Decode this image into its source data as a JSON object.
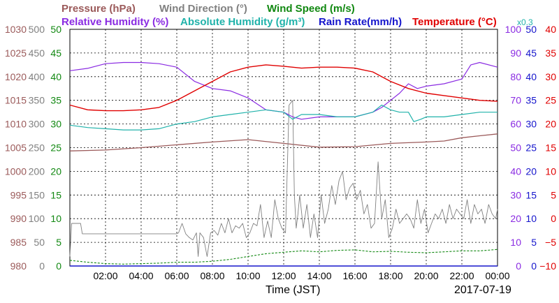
{
  "chart_data": {
    "type": "line",
    "date": "2017-07-19",
    "xlabel": "Time (JST)",
    "x_ticks": [
      "02:00",
      "04:00",
      "06:00",
      "08:00",
      "10:00",
      "12:00",
      "14:00",
      "16:00",
      "18:00",
      "20:00",
      "22:00",
      "00:00"
    ],
    "x_range": [
      0,
      24
    ],
    "grid": true,
    "legend": {
      "row1": [
        {
          "key": "pressure",
          "label": "Pressure (hPa)",
          "color": "#9b5a5a"
        },
        {
          "key": "wind_dir",
          "label": "Wind Direction (°)",
          "color": "#808080"
        },
        {
          "key": "wind_speed",
          "label": "Wind Speed (m/s)",
          "color": "#118811"
        }
      ],
      "row2": [
        {
          "key": "rh",
          "label": "Relative Humidity (%)",
          "color": "#8a2be2"
        },
        {
          "key": "ah",
          "label": "Absolute Humidity (g/m³)",
          "color": "#20b2aa"
        },
        {
          "key": "rain",
          "label": "Rain Rate(mm/h)",
          "color": "#1515cc"
        },
        {
          "key": "temp",
          "label": "Temperature (°C)",
          "color": "#e00000"
        }
      ],
      "rain_scale_note": "x0.3"
    },
    "left_axes": [
      {
        "key": "pressure",
        "color": "#9b5a5a",
        "ticks": [
          "1030",
          "1025",
          "1020",
          "1015",
          "1010",
          "1005",
          "1000",
          "995",
          "990",
          "985",
          "980"
        ]
      },
      {
        "key": "wind_dir",
        "color": "#808080",
        "ticks": [
          "500",
          "450",
          "400",
          "350",
          "300",
          "250",
          "200",
          "150",
          "100",
          "50",
          "0"
        ]
      },
      {
        "key": "wind_speed",
        "color": "#118811",
        "ticks": [
          "50",
          "45",
          "40",
          "35",
          "30",
          "25",
          "20",
          "15",
          "10",
          "5",
          "0"
        ]
      }
    ],
    "right_axes": [
      {
        "key": "rh",
        "color": "#8a2be2",
        "ticks": [
          "100",
          "90",
          "80",
          "70",
          "60",
          "50",
          "40",
          "30",
          "20",
          "10",
          "0"
        ]
      },
      {
        "key": "rain",
        "color": "#1515cc",
        "ticks": [
          "50",
          "45",
          "40",
          "35",
          "30",
          "25",
          "20",
          "15",
          "10",
          "5",
          "0"
        ]
      },
      {
        "key": "temp",
        "color": "#e00000",
        "ticks": [
          "40",
          "35",
          "30",
          "25",
          "20",
          "15",
          "10",
          "5",
          "0",
          "−5",
          "−10"
        ]
      }
    ],
    "axis_ranges": {
      "pressure": [
        980,
        1030
      ],
      "wind_dir": [
        0,
        500
      ],
      "wind_speed": [
        0,
        50
      ],
      "rh": [
        0,
        100
      ],
      "rain": [
        0,
        50
      ],
      "temp": [
        -10,
        40
      ]
    },
    "series": [
      {
        "name": "Pressure (hPa)",
        "key": "pressure",
        "color": "#9b5a5a",
        "axis": "pressure",
        "x": [
          0,
          2,
          4,
          6,
          8,
          10,
          12,
          14,
          16,
          18,
          20,
          21,
          22,
          23,
          24
        ],
        "y": [
          1004.3,
          1004.5,
          1005.0,
          1005.6,
          1006.2,
          1006.7,
          1005.9,
          1005.1,
          1005.2,
          1005.9,
          1006.2,
          1006.4,
          1007.1,
          1007.5,
          1007.9
        ]
      },
      {
        "name": "Wind Direction (°)",
        "key": "wind_dir",
        "color": "#808080",
        "axis": "wind_dir",
        "x": [
          0,
          0.1,
          0.15,
          0.6,
          0.7,
          6,
          6.1,
          6.3,
          6.5,
          6.7,
          6.9,
          7.1,
          7.2,
          7.3,
          7.5,
          7.7,
          7.9,
          8.1,
          8.3,
          8.5,
          8.7,
          8.9,
          9.1,
          9.3,
          9.5,
          9.7,
          9.9,
          10.1,
          10.3,
          10.5,
          10.7,
          10.9,
          11.1,
          11.3,
          11.5,
          11.7,
          11.9,
          12.1,
          12.3,
          12.5,
          12.6,
          12.7,
          12.8,
          12.9,
          13.1,
          13.3,
          13.5,
          13.7,
          13.9,
          14.1,
          14.3,
          14.5,
          14.7,
          14.9,
          15.1,
          15.3,
          15.5,
          15.7,
          15.9,
          16.1,
          16.3,
          16.5,
          16.7,
          16.9,
          17.1,
          17.3,
          17.5,
          17.7,
          17.9,
          18.1,
          18.3,
          18.5,
          18.7,
          18.9,
          19.1,
          19.3,
          19.5,
          19.7,
          19.9,
          20.1,
          20.3,
          20.5,
          20.7,
          20.9,
          21.1,
          21.3,
          21.5,
          21.7,
          21.9,
          22.1,
          22.3,
          22.5,
          22.7,
          22.9,
          23.1,
          23.3,
          23.5,
          23.7,
          23.9,
          24
        ],
        "y": [
          20,
          90,
          90,
          90,
          68,
          68,
          70,
          90,
          68,
          60,
          55,
          70,
          20,
          70,
          60,
          20,
          70,
          75,
          65,
          90,
          70,
          100,
          70,
          85,
          80,
          90,
          60,
          70,
          90,
          85,
          130,
          60,
          95,
          60,
          140,
          100,
          80,
          70,
          340,
          350,
          150,
          80,
          110,
          150,
          80,
          130,
          60,
          110,
          60,
          150,
          90,
          120,
          170,
          130,
          180,
          200,
          140,
          165,
          175,
          140,
          160,
          110,
          130,
          80,
          90,
          220,
          100,
          140,
          60,
          80,
          120,
          90,
          100,
          110,
          100,
          80,
          140,
          90,
          120,
          70,
          90,
          110,
          100,
          120,
          90,
          130,
          100,
          120,
          110,
          100,
          140,
          90,
          130,
          110,
          120,
          90,
          130,
          110,
          100,
          120
        ]
      },
      {
        "name": "Wind Speed (m/s)",
        "key": "wind_speed",
        "color": "#118811",
        "axis": "wind_speed",
        "x": [
          0,
          1,
          2,
          3,
          4,
          5,
          6,
          7,
          8,
          9,
          10,
          11,
          12,
          13,
          14,
          15,
          16,
          17,
          18,
          19,
          20,
          21,
          22,
          23,
          24
        ],
        "y": [
          1.2,
          0.8,
          0.5,
          0.4,
          0.5,
          0.6,
          0.8,
          0.8,
          1.0,
          1.4,
          2.0,
          2.6,
          2.9,
          3.2,
          3.0,
          3.3,
          3.4,
          3.0,
          3.1,
          2.9,
          2.8,
          3.0,
          3.2,
          3.2,
          3.5
        ]
      },
      {
        "name": "Relative Humidity (%)",
        "key": "rh",
        "color": "#8a2be2",
        "axis": "rh",
        "x": [
          0,
          1,
          2,
          3,
          4,
          5,
          6,
          7,
          8,
          9,
          10,
          11,
          12,
          12.5,
          13,
          14,
          15,
          16,
          17,
          17.5,
          18,
          18.5,
          19,
          19.5,
          20,
          21,
          22,
          22.5,
          23,
          24
        ],
        "y": [
          82.5,
          83.5,
          85.5,
          86,
          86,
          85.5,
          84,
          78,
          75,
          74,
          71,
          66,
          65,
          63,
          62,
          63,
          63,
          63,
          65,
          67,
          70,
          73,
          77,
          75,
          76,
          77,
          79,
          85,
          86,
          84
        ]
      },
      {
        "name": "Absolute Humidity (g/m³)",
        "key": "ah",
        "color": "#20b2aa",
        "axis": "rh",
        "x": [
          0,
          1,
          2,
          3,
          4,
          5,
          6,
          7,
          8,
          9,
          10,
          11,
          12,
          12.5,
          13,
          14,
          15,
          16,
          17,
          17.5,
          18,
          18.5,
          19,
          19.3,
          19.7,
          20,
          21,
          22,
          23,
          24
        ],
        "y": [
          59.5,
          58.5,
          58,
          57.5,
          57.5,
          58,
          60,
          61,
          63,
          64,
          65,
          66,
          65,
          62,
          64,
          64,
          63,
          63,
          65,
          68,
          66,
          65,
          65,
          61,
          62,
          63,
          63,
          64,
          65,
          65
        ]
      },
      {
        "name": "Rain Rate(mm/h)",
        "key": "rain",
        "color": "#1515cc",
        "axis": "rain",
        "x": [
          0,
          24
        ],
        "y": [
          0,
          0
        ]
      },
      {
        "name": "Temperature (°C)",
        "key": "temp",
        "color": "#e00000",
        "axis": "temp",
        "x": [
          0,
          1,
          2,
          3,
          4,
          5,
          6,
          7,
          8,
          9,
          10,
          11,
          12,
          13,
          14,
          15,
          16,
          17,
          18,
          19,
          20,
          21,
          22,
          23,
          24
        ],
        "y": [
          24,
          23,
          22.8,
          22.8,
          23,
          23.5,
          25,
          27,
          29,
          31,
          32,
          32.5,
          32.2,
          31.8,
          32,
          32,
          31.8,
          31,
          29,
          27.5,
          26.5,
          26,
          25.5,
          25,
          24.8
        ]
      }
    ]
  }
}
